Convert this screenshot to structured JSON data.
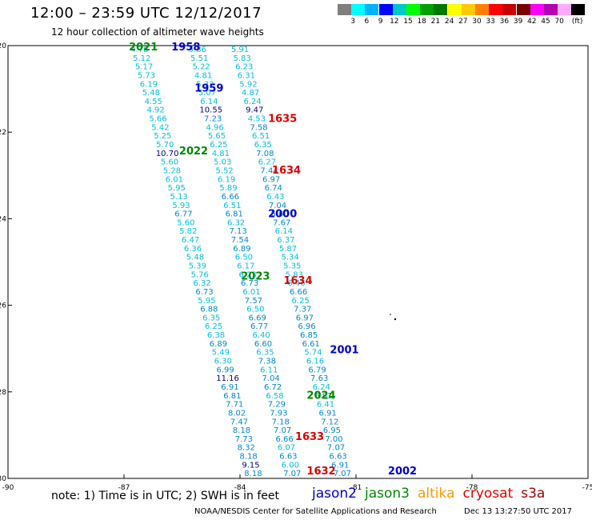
{
  "title": "12:00 – 23:59 UTC 12/12/2017",
  "subtitle": "12 hour collection of altimeter wave heights",
  "scale": {
    "colors": [
      "#7f7f7f",
      "#00ffff",
      "#00b2ff",
      "#0000ff",
      "#00c8c8",
      "#00ff00",
      "#00a000",
      "#007800",
      "#ffff00",
      "#ffc800",
      "#ff8000",
      "#ff0000",
      "#c80000",
      "#780000",
      "#ff00ff",
      "#b400b4",
      "#ffaaff",
      "#000000"
    ],
    "labels": [
      "3",
      "6",
      "9",
      "12",
      "15",
      "18",
      "21",
      "24",
      "27",
      "30",
      "33",
      "36",
      "39",
      "42",
      "45",
      "70"
    ],
    "unit": "(ft)"
  },
  "axes": {
    "x_ticks": [
      "-90",
      "-87",
      "-84",
      "-81",
      "-78",
      "-75"
    ],
    "y_ticks": [
      "-20",
      "-22",
      "-24",
      "-26",
      "-28",
      "-30"
    ]
  },
  "colors": {
    "jason2": "#0000cc",
    "jason3": "#008800",
    "altika": "#ff9900",
    "cryosat": "#dd0000",
    "s3a": "#990000",
    "swh_light": "#00c0e0",
    "swh_mid": "#0088cc",
    "swh_high": "#000088"
  },
  "track_a": {
    "lat": [
      -20,
      -20.2,
      -20.4,
      -20.6,
      -20.8,
      -21,
      -21.2,
      -21.4,
      -21.6,
      -21.8,
      -22,
      -22.2,
      -22.4,
      -22.6,
      -22.8,
      -23,
      -23.2,
      -23.4,
      -23.6,
      -23.8,
      -24,
      -24.2,
      -24.4,
      -24.6,
      -24.8,
      -25,
      -25.2,
      -25.4,
      -25.6,
      -25.8,
      -26,
      -26.2,
      -26.4,
      -26.6,
      -26.8,
      -27,
      -27.2,
      -27.4,
      -27.6,
      -27.8,
      -28,
      -28.2,
      -28.4,
      -28.6,
      -28.8,
      -29,
      -29.2,
      -29.4,
      -29.6,
      -29.8
    ],
    "values": [
      "4.78",
      "5.12",
      "5.17",
      "5.73",
      "6.19",
      "5.48",
      "4.55",
      "4.92",
      "5.66",
      "5.42",
      "5.25",
      "5.70",
      "10.70",
      "5.60",
      "5.28",
      "6.01",
      "5.95",
      "5.13",
      "5.93",
      "6.77",
      "5.60",
      "5.82",
      "6.47",
      "6.36",
      "5.48",
      "5.39",
      "5.76",
      "6.32",
      "6.73",
      "5.95",
      "6.88",
      "6.35",
      "6.25",
      "6.38",
      "6.89",
      "5.49",
      "6.30",
      "6.99",
      "11.16",
      "6.91",
      "6.81",
      "7.71",
      "8.02",
      "7.47",
      "8.18",
      "7.73",
      "8.32",
      "8.18",
      "9.15",
      "8.18"
    ]
  },
  "track_b": {
    "lat": [
      -20,
      -20.2,
      -20.4,
      -20.6,
      -20.8,
      -21,
      -21.2,
      -21.4,
      -21.6,
      -21.8,
      -22,
      -22.2,
      -22.4,
      -22.6,
      -22.8,
      -23,
      -23.2,
      -23.4,
      -23.6,
      -23.8,
      -24,
      -24.2,
      -24.4,
      -24.6,
      -24.8,
      -25,
      -25.2,
      -25.4,
      -25.6,
      -25.8,
      -26,
      -26.2,
      -26.4,
      -26.6,
      -26.8,
      -27,
      -27.2,
      -27.4,
      -27.6,
      -27.8,
      -28,
      -28.2,
      -28.4,
      -28.6,
      -28.8,
      -29,
      -29.2,
      -29.4,
      -29.6,
      -29.8
    ],
    "values": [
      "5.86",
      "5.51",
      "5.22",
      "4.81",
      "5.32",
      "5.07",
      "6.14",
      "10.55",
      "7.23",
      "4.96",
      "5.65",
      "6.25",
      "4.81",
      "5.03",
      "5.52",
      "6.19",
      "5.89",
      "6.66",
      "6.51",
      "6.81",
      "6.32",
      "7.13",
      "7.54",
      "6.89",
      "6.50",
      "6.17",
      "6.23",
      "6.73",
      "6.01",
      "7.57",
      "6.50",
      "6.69",
      "6.77",
      "6.40",
      "6.60",
      "6.35",
      "7.38",
      "6.11",
      "7.04",
      "6.72",
      "6.58",
      "7.29",
      "7.93",
      "7.18",
      "7.07",
      "6.66",
      "6.07",
      "6.63",
      "6.00",
      "7.07"
    ]
  },
  "track_c": {
    "lat": [
      -20,
      -20.2,
      -20.4,
      -20.6,
      -20.8,
      -21,
      -21.2,
      -21.4,
      -21.6,
      -21.8,
      -22,
      -22.2,
      -22.4,
      -22.6,
      -22.8,
      -23,
      -23.2,
      -23.4,
      -23.6,
      -23.8,
      -24,
      -24.2,
      -24.4,
      -24.6,
      -24.8,
      -25,
      -25.2,
      -25.4,
      -25.6,
      -25.8,
      -26,
      -26.2,
      -26.4,
      -26.6,
      -26.8,
      -27,
      -27.2,
      -27.4,
      -27.6,
      -27.8,
      -28,
      -28.2,
      -28.4,
      -28.6,
      -28.8,
      -29,
      -29.2,
      -29.4,
      -29.6,
      -29.8
    ],
    "values": [
      "5.91",
      "5.83",
      "6.23",
      "6.31",
      "5.92",
      "4.87",
      "6.24",
      "9.47",
      "4.53",
      "7.58",
      "6.51",
      "6.35",
      "7.08",
      "6.27",
      "7.44",
      "6.97",
      "6.74",
      "6.43",
      "7.04",
      "6.60",
      "7.67",
      "6.14",
      "6.37",
      "5.87",
      "5.34",
      "5.35",
      "5.83",
      "6.46",
      "6.66",
      "6.25",
      "7.37",
      "6.97",
      "6.96",
      "6.85",
      "6.61",
      "5.74",
      "6.16",
      "6.79",
      "7.63",
      "6.24",
      "6.81",
      "6.41",
      "6.91",
      "7.12",
      "6.95",
      "7.00",
      "7.07",
      "6.63",
      "6.91",
      "7.07"
    ]
  },
  "pass_labels": [
    {
      "text": "2021",
      "sat": "jason3",
      "lon": -86.5,
      "lat": -20.0
    },
    {
      "text": "1958",
      "sat": "jason2",
      "lon": -85.4,
      "lat": -20.0
    },
    {
      "text": "1959",
      "sat": "jason2",
      "lon": -84.8,
      "lat": -20.95
    },
    {
      "text": "1635",
      "sat": "cryosat",
      "lon": -82.9,
      "lat": -21.65
    },
    {
      "text": "2022",
      "sat": "jason3",
      "lon": -85.2,
      "lat": -22.4
    },
    {
      "text": "1634",
      "sat": "cryosat",
      "lon": -82.8,
      "lat": -22.85
    },
    {
      "text": "2000",
      "sat": "jason2",
      "lon": -82.9,
      "lat": -23.85
    },
    {
      "text": "2023",
      "sat": "jason3",
      "lon": -83.6,
      "lat": -25.3
    },
    {
      "text": "1634",
      "sat": "cryosat",
      "lon": -82.5,
      "lat": -25.4
    },
    {
      "text": "2001",
      "sat": "jason2",
      "lon": -81.3,
      "lat": -27.0
    },
    {
      "text": "2024",
      "sat": "jason3",
      "lon": -81.9,
      "lat": -28.05
    },
    {
      "text": "1633",
      "sat": "cryosat",
      "lon": -82.2,
      "lat": -29.0
    },
    {
      "text": "2002",
      "sat": "jason2",
      "lon": -79.8,
      "lat": -29.8
    },
    {
      "text": "1632",
      "sat": "cryosat",
      "lon": -81.9,
      "lat": -29.8
    }
  ],
  "note": "note:  1) Time is in UTC;  2) SWH is in feet",
  "legend": [
    {
      "text": "jason2",
      "sat": "jason2"
    },
    {
      "text": "jason3",
      "sat": "jason3"
    },
    {
      "text": "altika",
      "sat": "altika"
    },
    {
      "text": "cryosat",
      "sat": "cryosat"
    },
    {
      "text": "s3a",
      "sat": "s3a"
    }
  ],
  "credit": "NOAA/NESDIS Center for Satellite Applications and Research",
  "timestamp": "Dec 13 13:27:50 UTC 2017"
}
